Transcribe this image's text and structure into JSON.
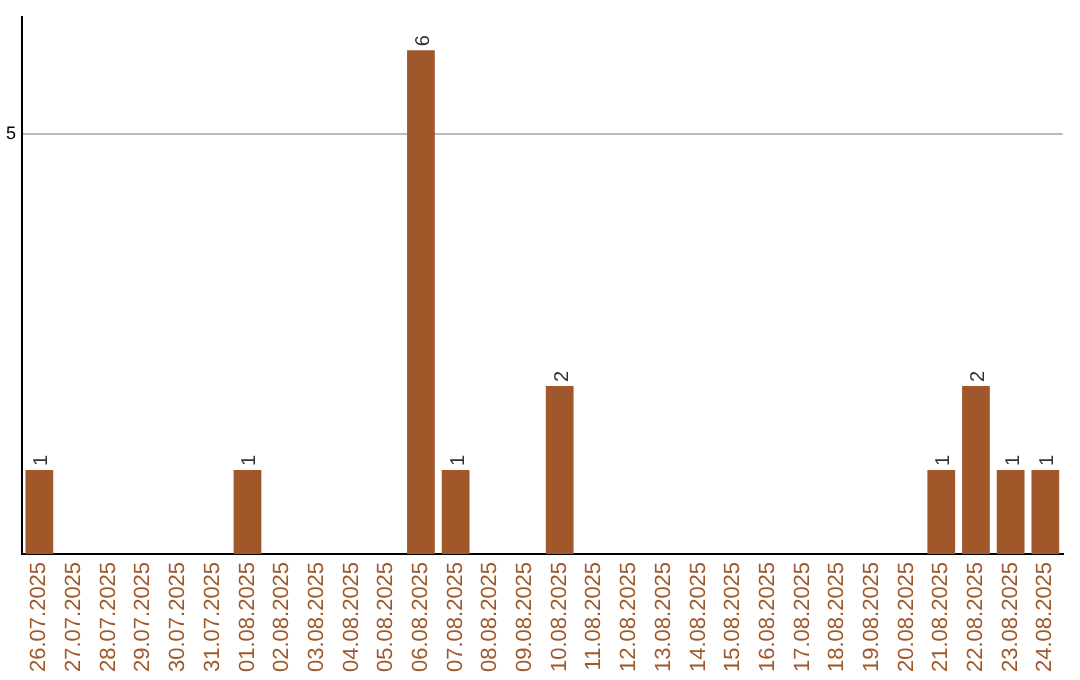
{
  "chart_data": {
    "type": "bar",
    "categories": [
      "26.07.2025",
      "27.07.2025",
      "28.07.2025",
      "29.07.2025",
      "30.07.2025",
      "31.07.2025",
      "01.08.2025",
      "02.08.2025",
      "03.08.2025",
      "04.08.2025",
      "05.08.2025",
      "06.08.2025",
      "07.08.2025",
      "08.08.2025",
      "09.08.2025",
      "10.08.2025",
      "11.08.2025",
      "12.08.2025",
      "13.08.2025",
      "14.08.2025",
      "15.08.2025",
      "16.08.2025",
      "17.08.2025",
      "18.08.2025",
      "19.08.2025",
      "20.08.2025",
      "21.08.2025",
      "22.08.2025",
      "23.08.2025",
      "24.08.2025"
    ],
    "values": [
      1,
      0,
      0,
      0,
      0,
      0,
      1,
      0,
      0,
      0,
      0,
      6,
      1,
      0,
      0,
      2,
      0,
      0,
      0,
      0,
      0,
      0,
      0,
      0,
      0,
      0,
      1,
      2,
      1,
      1
    ],
    "value_labels": [
      "1",
      null,
      null,
      null,
      null,
      null,
      "1",
      null,
      null,
      null,
      null,
      "6",
      "1",
      null,
      null,
      "2",
      null,
      null,
      null,
      null,
      null,
      null,
      null,
      null,
      null,
      null,
      "1",
      "2",
      "1",
      "1"
    ],
    "color": "#a0582a",
    "ylim": [
      0,
      6.4
    ],
    "yticks": [
      5
    ],
    "grid": "y",
    "legend": false
  }
}
